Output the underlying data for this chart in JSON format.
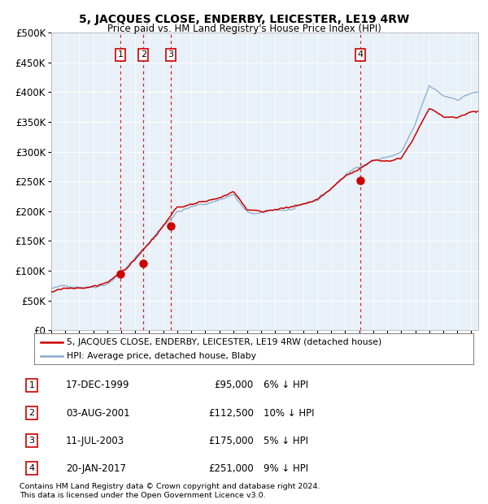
{
  "title": "5, JACQUES CLOSE, ENDERBY, LEICESTER, LE19 4RW",
  "subtitle": "Price paid vs. HM Land Registry's House Price Index (HPI)",
  "legend_line1": "5, JACQUES CLOSE, ENDERBY, LEICESTER, LE19 4RW (detached house)",
  "legend_line2": "HPI: Average price, detached house, Blaby",
  "footer1": "Contains HM Land Registry data © Crown copyright and database right 2024.",
  "footer2": "This data is licensed under the Open Government Licence v3.0.",
  "ylim": [
    0,
    500000
  ],
  "yticks": [
    0,
    50000,
    100000,
    150000,
    200000,
    250000,
    300000,
    350000,
    400000,
    450000,
    500000
  ],
  "xlim_start": 1995.0,
  "xlim_end": 2025.5,
  "plot_bg": "#e8f0f8",
  "grid_color": "#ffffff",
  "red_line_color": "#cc0000",
  "blue_line_color": "#88aacc",
  "sale_marker_color": "#cc0000",
  "vline_color": "#cc0000",
  "box_color": "#cc0000",
  "sales": [
    {
      "num": 1,
      "year": 1999.96,
      "price": 95000,
      "label": "1"
    },
    {
      "num": 2,
      "year": 2001.58,
      "price": 112500,
      "label": "2"
    },
    {
      "num": 3,
      "year": 2003.52,
      "price": 175000,
      "label": "3"
    },
    {
      "num": 4,
      "year": 2017.05,
      "price": 251000,
      "label": "4"
    }
  ],
  "table_rows": [
    {
      "num": "1",
      "date": "17-DEC-1999",
      "price": "£95,000",
      "pct": "6% ↓ HPI"
    },
    {
      "num": "2",
      "date": "03-AUG-2001",
      "price": "£112,500",
      "pct": "10% ↓ HPI"
    },
    {
      "num": "3",
      "date": "11-JUL-2003",
      "price": "£175,000",
      "pct": "5% ↓ HPI"
    },
    {
      "num": "4",
      "date": "20-JAN-2017",
      "price": "£251,000",
      "pct": "9% ↓ HPI"
    }
  ],
  "hpi_anchors_x": [
    1995,
    1996,
    1997,
    1998,
    1999,
    2000,
    2001,
    2002,
    2003,
    2004,
    2005,
    2006,
    2007,
    2008,
    2009,
    2010,
    2011,
    2012,
    2013,
    2014,
    2015,
    2016,
    2017,
    2018,
    2019,
    2020,
    2021,
    2022,
    2023,
    2024,
    2025
  ],
  "hpi_anchors_y": [
    70000,
    73000,
    75000,
    77000,
    85000,
    105000,
    128000,
    155000,
    183000,
    208000,
    215000,
    220000,
    228000,
    238000,
    205000,
    202000,
    208000,
    208000,
    213000,
    220000,
    240000,
    262000,
    278000,
    290000,
    295000,
    303000,
    348000,
    410000,
    392000,
    388000,
    400000
  ],
  "red_anchors_x": [
    1995,
    1996,
    1997,
    1998,
    1999,
    2000,
    2001,
    2002,
    2003,
    2004,
    2005,
    2006,
    2007,
    2008,
    2009,
    2010,
    2011,
    2012,
    2013,
    2014,
    2015,
    2016,
    2017,
    2018,
    2019,
    2020,
    2021,
    2022,
    2023,
    2024,
    2025
  ],
  "red_anchors_y": [
    65000,
    68000,
    70000,
    72000,
    78000,
    96000,
    118000,
    142000,
    170000,
    198000,
    204000,
    208000,
    216000,
    225000,
    193000,
    191000,
    196000,
    198000,
    203000,
    210000,
    228000,
    248000,
    263000,
    276000,
    280000,
    288000,
    325000,
    372000,
    357000,
    355000,
    368000
  ]
}
